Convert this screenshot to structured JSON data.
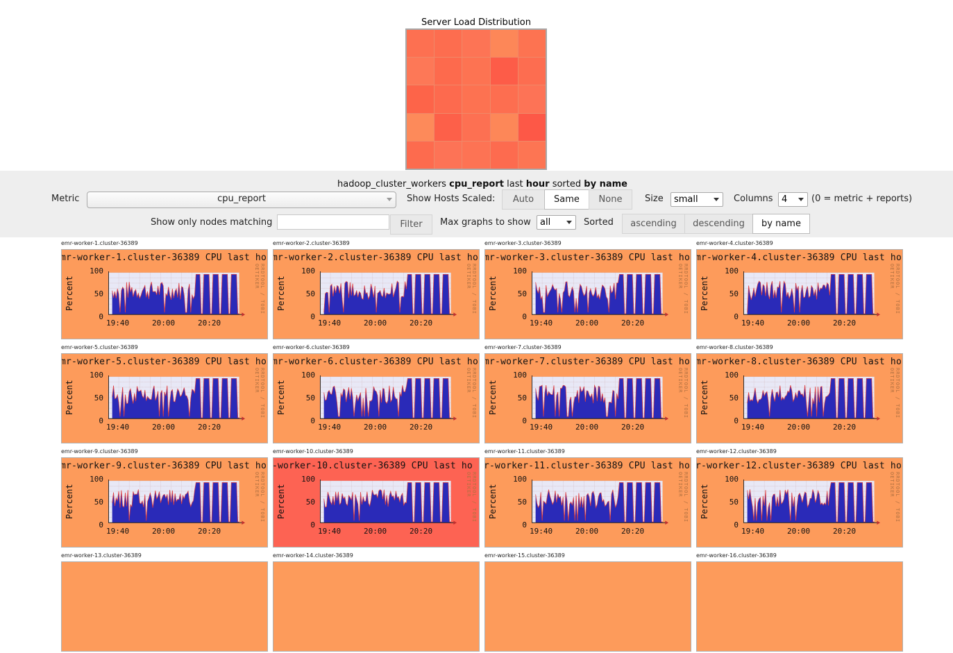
{
  "heatmap": {
    "title": "Server Load Distribution",
    "colors": [
      "#fd7051",
      "#fd6d4f",
      "#fd7455",
      "#fd8758",
      "#fd7351",
      "#fd7857",
      "#fd6a4d",
      "#fd7352",
      "#fd5c48",
      "#fd6d50",
      "#fd6449",
      "#fd6a4e",
      "#fd7251",
      "#fd6e50",
      "#fd7356",
      "#fd8a5a",
      "#fd6049",
      "#fd7052",
      "#fd8758",
      "#fd5847",
      "#fd6b4e",
      "#fd7356",
      "#fd7354",
      "#fd6b4f",
      "#fd7553"
    ]
  },
  "controls": {
    "summary": {
      "cluster": "hadoop_cluster_workers",
      "metric": "cpu_report",
      "w1": "last",
      "range": "hour",
      "w2": "sorted",
      "sort": "by name"
    },
    "metric_label": "Metric",
    "metric_value": "cpu_report",
    "scaled_label": "Show Hosts Scaled:",
    "scaled_options": [
      "Auto",
      "Same",
      "None"
    ],
    "size_label": "Size",
    "size_value": "small",
    "columns_label": "Columns",
    "columns_value": "4",
    "columns_hint": "(0 = metric + reports)",
    "filter_label": "Show only nodes matching",
    "filter_value": "",
    "filter_button": "Filter",
    "max_label": "Max graphs to show",
    "max_value": "all",
    "sorted_label": "Sorted",
    "sort_options": [
      "ascending",
      "descending",
      "by name"
    ]
  },
  "graph_labels": {
    "ylabel": "Percent",
    "yticks": [
      "100",
      "50",
      "0"
    ],
    "xticks": [
      "19:40",
      "20:00",
      "20:20"
    ],
    "rrd": "RRDTOOL / TOBI OETIKER",
    "title_suffix": " CPU last hour"
  },
  "hosts": [
    {
      "name": "emr-worker-1.cluster-36389",
      "title": "mr-worker-1.cluster-36389 CPU last hou",
      "hot": false
    },
    {
      "name": "emr-worker-2.cluster-36389",
      "title": "mr-worker-2.cluster-36389 CPU last hou",
      "hot": false
    },
    {
      "name": "emr-worker-3.cluster-36389",
      "title": "mr-worker-3.cluster-36389 CPU last hou",
      "hot": false
    },
    {
      "name": "emr-worker-4.cluster-36389",
      "title": "mr-worker-4.cluster-36389 CPU last hou",
      "hot": false
    },
    {
      "name": "emr-worker-5.cluster-36389",
      "title": "mr-worker-5.cluster-36389 CPU last hou",
      "hot": false
    },
    {
      "name": "emr-worker-6.cluster-36389",
      "title": "mr-worker-6.cluster-36389 CPU last hou",
      "hot": false
    },
    {
      "name": "emr-worker-7.cluster-36389",
      "title": "mr-worker-7.cluster-36389 CPU last hou",
      "hot": false
    },
    {
      "name": "emr-worker-8.cluster-36389",
      "title": "mr-worker-8.cluster-36389 CPU last hou",
      "hot": false
    },
    {
      "name": "emr-worker-9.cluster-36389",
      "title": "mr-worker-9.cluster-36389 CPU last hou",
      "hot": false
    },
    {
      "name": "emr-worker-10.cluster-36389",
      "title": "-worker-10.cluster-36389 CPU last ho",
      "hot": true
    },
    {
      "name": "emr-worker-11.cluster-36389",
      "title": "r-worker-11.cluster-36389 CPU last ho",
      "hot": false
    },
    {
      "name": "emr-worker-12.cluster-36389",
      "title": "r-worker-12.cluster-36389 CPU last ho",
      "hot": false
    },
    {
      "name": "emr-worker-13.cluster-36389",
      "title": "",
      "hot": false
    },
    {
      "name": "emr-worker-14.cluster-36389",
      "title": "",
      "hot": false
    },
    {
      "name": "emr-worker-15.cluster-36389",
      "title": "",
      "hot": false
    },
    {
      "name": "emr-worker-16.cluster-36389",
      "title": "",
      "hot": false
    }
  ],
  "colors": {
    "graph_bg": "#fd9b5b",
    "graph_hot_bg": "#fd6353",
    "plot_bg": "#e8e8f6",
    "cpu_fill": "#2a2ab8",
    "cpu_top": "#e04040"
  }
}
